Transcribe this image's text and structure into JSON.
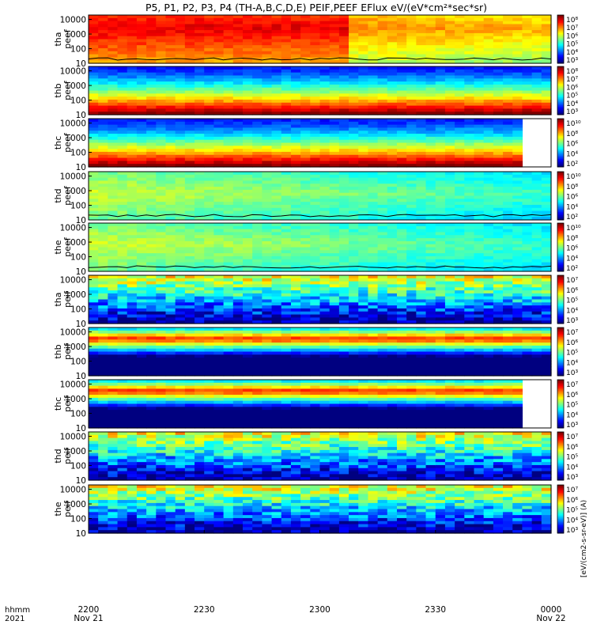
{
  "title": "P5, P1, P2, P3, P4 (TH-A,B,C,D,E) PEIF,PEEF EFlux eV/(eV*cm²*sec*sr)",
  "colorbar_unit": "[eV/(cm2-s-sr-eV)] (A)",
  "time_axis": {
    "row_label_1": "hhmm",
    "row_label_2": "2021",
    "ticks": [
      {
        "time": "2200",
        "date": "Nov 21"
      },
      {
        "time": "2230",
        "date": ""
      },
      {
        "time": "2300",
        "date": ""
      },
      {
        "time": "2330",
        "date": ""
      },
      {
        "time": "0000",
        "date": "Nov 22"
      }
    ]
  },
  "chart_data": [
    {
      "type": "heatmap",
      "probe": "tha",
      "ylabel_1": "tha",
      "ylabel_2": "peef",
      "y_ticks": [
        "10000",
        "1000",
        "100",
        "10"
      ],
      "ylim": [
        10,
        20000
      ],
      "yscale": "log",
      "colorbar_ticks": [
        "10⁸",
        "10⁷",
        "10⁶",
        "10⁵",
        "10⁴",
        "10³"
      ],
      "peak_band": "high",
      "has_line": true,
      "blank_end": false
    },
    {
      "type": "heatmap",
      "probe": "thb",
      "ylabel_1": "thb",
      "ylabel_2": "peef",
      "y_ticks": [
        "10000",
        "1000",
        "100",
        "10"
      ],
      "ylim": [
        10,
        20000
      ],
      "yscale": "log",
      "colorbar_ticks": [
        "10⁸",
        "10⁷",
        "10⁶",
        "10⁵",
        "10⁴",
        "10³"
      ],
      "peak_band": "low",
      "has_line": false,
      "blank_end": false
    },
    {
      "type": "heatmap",
      "probe": "thc",
      "ylabel_1": "thc",
      "ylabel_2": "peef",
      "y_ticks": [
        "10000",
        "1000",
        "100",
        "10"
      ],
      "ylim": [
        10,
        20000
      ],
      "yscale": "log",
      "colorbar_ticks": [
        "10¹⁰",
        "10⁸",
        "10⁶",
        "10⁴",
        "10²"
      ],
      "peak_band": "low",
      "has_line": false,
      "blank_end": true
    },
    {
      "type": "heatmap",
      "probe": "thd",
      "ylabel_1": "thd",
      "ylabel_2": "peef",
      "y_ticks": [
        "10000",
        "1000",
        "100",
        "10"
      ],
      "ylim": [
        10,
        20000
      ],
      "yscale": "log",
      "colorbar_ticks": [
        "10¹⁰",
        "10⁸",
        "10⁶",
        "10⁴",
        "10²"
      ],
      "peak_band": "mid",
      "has_line": true,
      "blank_end": false
    },
    {
      "type": "heatmap",
      "probe": "the",
      "ylabel_1": "the",
      "ylabel_2": "peef",
      "y_ticks": [
        "10000",
        "1000",
        "100",
        "10"
      ],
      "ylim": [
        10,
        20000
      ],
      "yscale": "log",
      "colorbar_ticks": [
        "10¹⁰",
        "10⁸",
        "10⁶",
        "10⁴",
        "10²"
      ],
      "peak_band": "mid",
      "has_line": true,
      "blank_end": false
    },
    {
      "type": "heatmap",
      "probe": "tha",
      "ylabel_1": "tha",
      "ylabel_2": "peif",
      "y_ticks": [
        "10000",
        "1000",
        "100",
        "10"
      ],
      "ylim": [
        10,
        20000
      ],
      "yscale": "log",
      "colorbar_ticks": [
        "10⁷",
        "10⁶",
        "10⁵",
        "10⁴",
        "10³"
      ],
      "peak_band": "ion_noisy",
      "has_line": false,
      "blank_end": false
    },
    {
      "type": "heatmap",
      "probe": "thb",
      "ylabel_1": "thb",
      "ylabel_2": "peif",
      "y_ticks": [
        "10000",
        "1000",
        "100",
        "10"
      ],
      "ylim": [
        10,
        20000
      ],
      "yscale": "log",
      "colorbar_ticks": [
        "10⁷",
        "10⁶",
        "10⁵",
        "10⁴",
        "10³"
      ],
      "peak_band": "ion",
      "has_line": false,
      "blank_end": false
    },
    {
      "type": "heatmap",
      "probe": "thc",
      "ylabel_1": "thc",
      "ylabel_2": "peif",
      "y_ticks": [
        "10000",
        "1000",
        "100",
        "10"
      ],
      "ylim": [
        10,
        20000
      ],
      "yscale": "log",
      "colorbar_ticks": [
        "10⁷",
        "10⁶",
        "10⁵",
        "10⁴",
        "10³"
      ],
      "peak_band": "ion",
      "has_line": false,
      "blank_end": true
    },
    {
      "type": "heatmap",
      "probe": "thd",
      "ylabel_1": "thd",
      "ylabel_2": "peif",
      "y_ticks": [
        "10000",
        "1000",
        "100",
        "10"
      ],
      "ylim": [
        10,
        20000
      ],
      "yscale": "log",
      "colorbar_ticks": [
        "10⁷",
        "10⁶",
        "10⁵",
        "10⁴",
        "10³"
      ],
      "peak_band": "ion_noisy",
      "has_line": false,
      "blank_end": false
    },
    {
      "type": "heatmap",
      "probe": "the",
      "ylabel_1": "the",
      "ylabel_2": "peif",
      "y_ticks": [
        "10000",
        "1000",
        "100",
        "10"
      ],
      "ylim": [
        10,
        20000
      ],
      "yscale": "log",
      "colorbar_ticks": [
        "10⁷",
        "10⁶",
        "10⁵",
        "10⁴",
        "10³"
      ],
      "peak_band": "ion_noisy",
      "has_line": false,
      "blank_end": false
    }
  ]
}
